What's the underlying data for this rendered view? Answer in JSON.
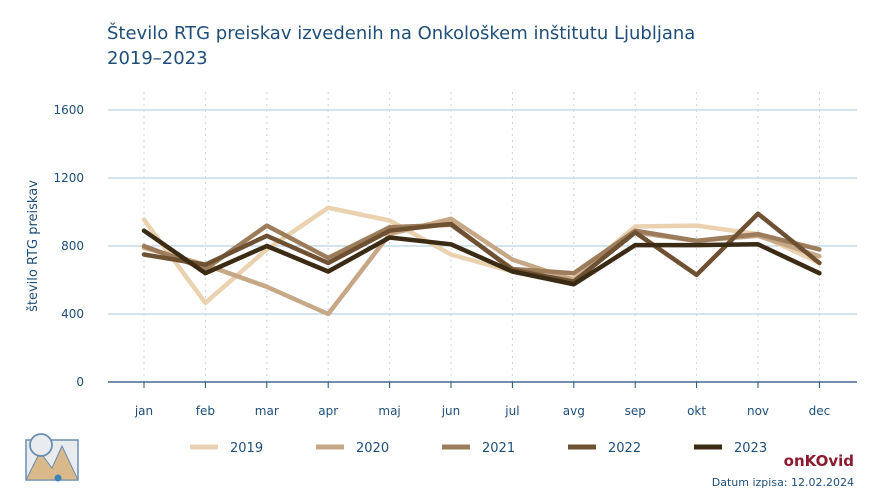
{
  "chart_data": {
    "type": "line",
    "title_line1": "Število RTG preiskav izvedenih na Onkološkem inštitutu Ljubljana",
    "title_line2": "2019–2023",
    "xlabel": "",
    "ylabel": "število RTG preiskav",
    "ylim": [
      0,
      1600
    ],
    "yticks": [
      "0",
      "400",
      "800",
      "1200",
      "1600"
    ],
    "categories": [
      "jan",
      "feb",
      "mar",
      "apr",
      "maj",
      "jun",
      "jul",
      "avg",
      "sep",
      "okt",
      "nov",
      "dec"
    ],
    "series": [
      {
        "name": "2019",
        "color": "#ead2b0",
        "values": [
          955,
          465,
          780,
          1025,
          950,
          750,
          650,
          610,
          915,
          920,
          870,
          700
        ]
      },
      {
        "name": "2020",
        "color": "#c6a886",
        "values": [
          790,
          690,
          560,
          400,
          870,
          960,
          720,
          600,
          880,
          830,
          860,
          740
        ]
      },
      {
        "name": "2021",
        "color": "#9c7c5a",
        "values": [
          800,
          665,
          920,
          730,
          910,
          925,
          665,
          640,
          890,
          830,
          870,
          780
        ]
      },
      {
        "name": "2022",
        "color": "#6e5033",
        "values": [
          750,
          690,
          860,
          700,
          890,
          930,
          660,
          590,
          880,
          630,
          990,
          700
        ]
      },
      {
        "name": "2023",
        "color": "#3b2a14",
        "values": [
          890,
          640,
          800,
          650,
          850,
          810,
          650,
          575,
          805,
          805,
          810,
          640
        ]
      }
    ],
    "grid": true,
    "legend_position": "bottom"
  },
  "brand": "onKOvid",
  "footer": "Datum izpisa: 12.02.2024",
  "logo_icon": "mountain-image-icon"
}
